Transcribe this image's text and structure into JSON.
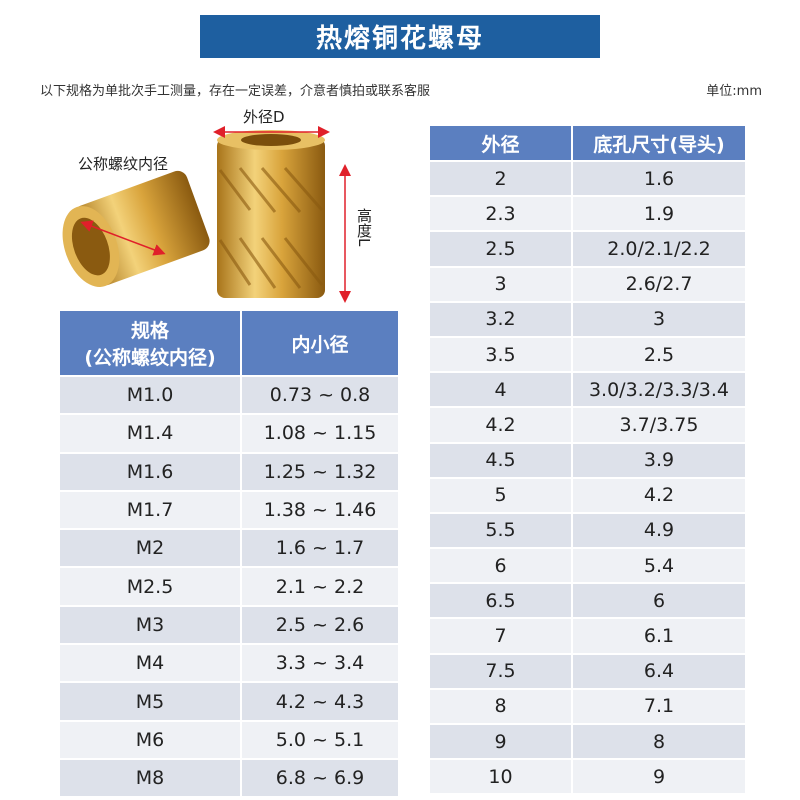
{
  "header": {
    "title": "热熔铜花螺母",
    "note": "以下规格为单批次手工测量，存在一定误差，介意者慎拍或联系客服",
    "unit": "单位:mm"
  },
  "figure": {
    "outer_diameter": "外径D",
    "thread_diameter": "公称螺纹内径",
    "height": "高度L"
  },
  "left_table": {
    "header": [
      [
        "规格",
        "(公称螺纹内径)"
      ],
      [
        "内小径"
      ]
    ],
    "rows": [
      [
        "M1.0",
        "0.73 ~ 0.8"
      ],
      [
        "M1.4",
        "1.08 ~ 1.15"
      ],
      [
        "M1.6",
        "1.25 ~ 1.32"
      ],
      [
        "M1.7",
        "1.38 ~ 1.46"
      ],
      [
        "M2",
        "1.6 ~ 1.7"
      ],
      [
        "M2.5",
        "2.1 ~ 2.2"
      ],
      [
        "M3",
        "2.5 ~ 2.6"
      ],
      [
        "M4",
        "3.3 ~ 3.4"
      ],
      [
        "M5",
        "4.2 ~ 4.3"
      ],
      [
        "M6",
        "5.0 ~ 5.1"
      ],
      [
        "M8",
        "6.8 ~ 6.9"
      ]
    ]
  },
  "right_table": {
    "header": [
      "外径",
      "底孔尺寸(导头)"
    ],
    "rows": [
      [
        "2",
        "1.6"
      ],
      [
        "2.3",
        "1.9"
      ],
      [
        "2.5",
        "2.0/2.1/2.2"
      ],
      [
        "3",
        "2.6/2.7"
      ],
      [
        "3.2",
        "3"
      ],
      [
        "3.5",
        "2.5"
      ],
      [
        "4",
        "3.0/3.2/3.3/3.4"
      ],
      [
        "4.2",
        "3.7/3.75"
      ],
      [
        "4.5",
        "3.9"
      ],
      [
        "5",
        "4.2"
      ],
      [
        "5.5",
        "4.9"
      ],
      [
        "6",
        "5.4"
      ],
      [
        "6.5",
        "6"
      ],
      [
        "7",
        "6.1"
      ],
      [
        "7.5",
        "6.4"
      ],
      [
        "8",
        "7.1"
      ],
      [
        "9",
        "8"
      ],
      [
        "10",
        "9"
      ]
    ]
  }
}
